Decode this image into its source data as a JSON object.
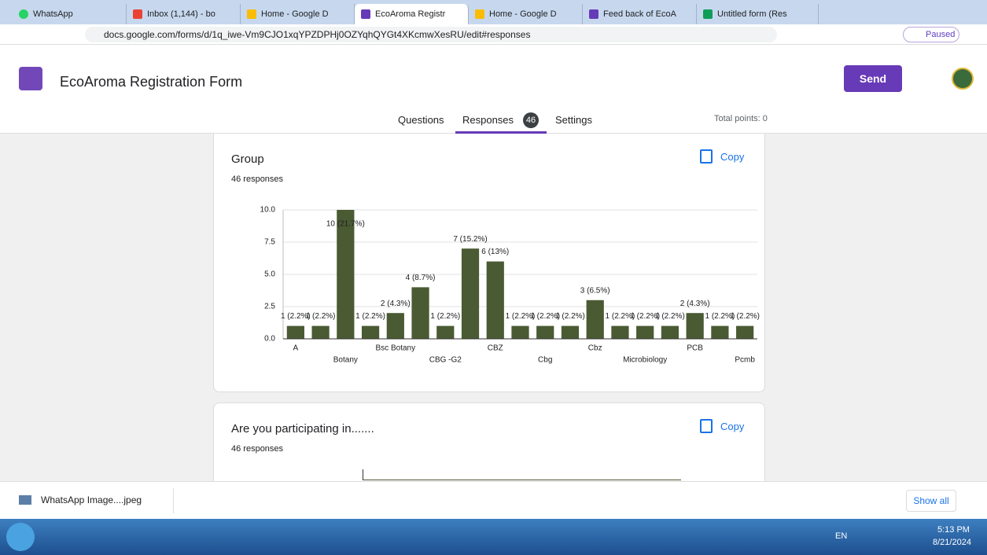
{
  "browser": {
    "tabs": [
      "WhatsApp",
      "Inbox (1,144) - bo",
      "Home - Google D",
      "EcoAroma Registr",
      "Home - Google D",
      "Feed back of EcoA",
      "Untitled form (Res"
    ],
    "url": "docs.google.com/forms/d/1q_iwe-Vm9CJO1xqYPZDPHj0OZYqhQYGt4XKcmwXesRU/edit#responses",
    "profile": "Paused"
  },
  "form": {
    "title": "EcoAroma Registration Form",
    "send": "Send",
    "questions": "Questions",
    "responses": "Responses",
    "response_count": "46",
    "settings": "Settings",
    "total_points": "Total points: 0"
  },
  "cards": [
    {
      "title": "Group",
      "responses": "46 responses",
      "copy": "Copy"
    },
    {
      "title": "Are you participating in.......",
      "responses": "46 responses",
      "copy": "Copy"
    }
  ],
  "chart_data": {
    "type": "bar",
    "categories": [
      "A",
      null,
      "Botany",
      null,
      "Bsc Botany",
      null,
      "CBG -G2",
      null,
      "CBZ",
      null,
      "Cbg",
      null,
      "Cbz",
      null,
      "Microbiology",
      null,
      "PCB",
      null,
      "Pcmb"
    ],
    "values": [
      1,
      1,
      10,
      1,
      2,
      4,
      1,
      7,
      6,
      1,
      1,
      1,
      3,
      1,
      1,
      1,
      2,
      1,
      1
    ],
    "value_labels": [
      "1 (2.2%)",
      "1 (2.2%)",
      "10 (21.7%)",
      "1 (2.2%)",
      "2 (4.3%)",
      "4 (8.7%)",
      "1 (2.2%)",
      "7 (15.2%)",
      "6 (13%)",
      "1 (2.2%)",
      "1 (2.2%)",
      "1 (2.2%)",
      "3 (6.5%)",
      "1 (2.2%)",
      "1 (2.2%)",
      "1 (2.2%)",
      "2 (4.3%)",
      "1 (2.2%)",
      "1 (2.2%)"
    ],
    "color": "#4a5a33",
    "ylim": [
      0,
      10
    ],
    "yticks": [
      {
        "value": 0,
        "label": "0.0"
      },
      2.5,
      {
        "value": 5,
        "label": "5.0"
      },
      7.5,
      {
        "value": 10,
        "label": "10.0"
      }
    ],
    "grid": true
  },
  "downloads": {
    "file": "WhatsApp Image....jpeg",
    "show_all": "Show all"
  },
  "taskbar": {
    "lang": "EN",
    "time": "5:13 PM",
    "date": "8/21/2024"
  }
}
